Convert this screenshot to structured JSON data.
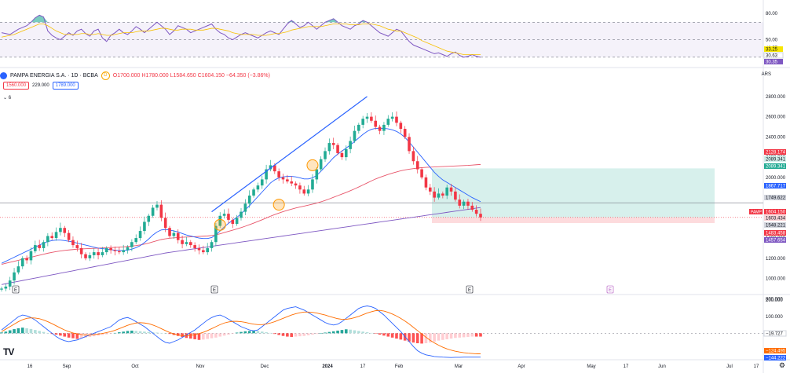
{
  "header": {
    "symbol": "PAMPA ENERGIA S.A. · 1D · BCBA",
    "badge": "D",
    "ohlc": {
      "o": "O1700.000",
      "h": "H1780.000",
      "l": "L1584.650",
      "c": "C1604.150",
      "chg": "−64.350 (−3.86%)"
    },
    "bid": "1560.000",
    "spread": "229.000",
    "ask": "1789.000",
    "indicators_toggle": "6",
    "currency": "ARS"
  },
  "chart_data": [
    {
      "type": "line",
      "panel": "rsi",
      "ylim": [
        20,
        90
      ],
      "levels": [
        70,
        50,
        30
      ],
      "y_ticks": [
        "80.00",
        "50.00",
        "40.57"
      ],
      "price_labels": [
        {
          "text": "33.25",
          "color": "#f7e600"
        },
        {
          "text": "30.63",
          "color": "#ffffff"
        },
        {
          "text": "30.35",
          "color": "#7e57c2"
        }
      ],
      "series": [
        {
          "color": "#7e57c2",
          "values": [
            58,
            57,
            56,
            59,
            62,
            64,
            66,
            70,
            75,
            78,
            76,
            60,
            55,
            52,
            50,
            54,
            58,
            55,
            60,
            62,
            57,
            54,
            60,
            62,
            52,
            48,
            55,
            58,
            62,
            58,
            56,
            60,
            65,
            62,
            58,
            62,
            66,
            70,
            66,
            62,
            56,
            60,
            66,
            64,
            62,
            58,
            60,
            62,
            64,
            66,
            68,
            62,
            58,
            56,
            52,
            50,
            53,
            56,
            58,
            56,
            54,
            52,
            55,
            58,
            60,
            58,
            56,
            62,
            68,
            72,
            68,
            64,
            66,
            70,
            66,
            62,
            66,
            70,
            72,
            74,
            70,
            66,
            64,
            62,
            66,
            68,
            72,
            70,
            66,
            62,
            58,
            56,
            54,
            58,
            62,
            60,
            54,
            48,
            44,
            42,
            40,
            38,
            36,
            34,
            35,
            33,
            31,
            34,
            36,
            32,
            30,
            31,
            33,
            31,
            30
          ]
        },
        {
          "color": "#f7c000",
          "values": [
            53,
            54,
            55,
            56,
            58,
            60,
            62,
            64,
            66,
            68,
            68,
            66,
            63,
            60,
            58,
            56,
            56,
            56,
            56,
            57,
            57,
            56,
            56,
            57,
            56,
            55,
            55,
            56,
            57,
            58,
            58,
            58,
            59,
            60,
            60,
            60,
            61,
            62,
            63,
            63,
            62,
            61,
            61,
            62,
            62,
            62,
            61,
            61,
            61,
            62,
            63,
            63,
            62,
            61,
            60,
            58,
            57,
            56,
            56,
            56,
            56,
            55,
            55,
            55,
            56,
            57,
            57,
            58,
            59,
            61,
            62,
            63,
            64,
            65,
            65,
            65,
            65,
            66,
            67,
            68,
            68,
            68,
            68,
            67,
            67,
            67,
            68,
            68,
            68,
            67,
            66,
            64,
            62,
            61,
            60,
            60,
            58,
            56,
            54,
            52,
            49,
            47,
            45,
            43,
            41,
            39,
            37,
            36,
            35,
            34,
            33,
            33,
            33,
            33,
            33
          ]
        }
      ]
    },
    {
      "type": "candlestick",
      "panel": "price",
      "ylim": [
        880,
        2900
      ],
      "y_ticks": [
        "2800.000",
        "2600.000",
        "2400.000",
        "2200.000",
        "2000.000",
        "1800.000",
        "1400.000",
        "1200.000",
        "1000.000",
        "800.000"
      ],
      "price_labels": [
        {
          "text": "2128.174",
          "bg": "#f23645",
          "fg": "#ffffff"
        },
        {
          "text": "2089.341",
          "bg": "#cfeee9",
          "fg": "#131722"
        },
        {
          "text": "2089.341",
          "bg": "#22ab94",
          "fg": "#ffffff"
        },
        {
          "text": "1867.717",
          "bg": "#2962ff",
          "fg": "#ffffff"
        },
        {
          "text": "1749.622",
          "bg": "#d1d4dc",
          "fg": "#131722"
        },
        {
          "text": "1604.150",
          "bg": "#f23645",
          "fg": "#ffffff",
          "tag": "PAMP"
        },
        {
          "text": "1603.434",
          "bg": "#f7d3d6",
          "fg": "#131722"
        },
        {
          "text": "1548.221",
          "bg": "#d1d4dc",
          "fg": "#131722"
        },
        {
          "text": "1483.458",
          "bg": "#f23645",
          "fg": "#ffffff"
        },
        {
          "text": "1457.654",
          "bg": "#7e57c2",
          "fg": "#ffffff"
        }
      ],
      "closes": [
        900,
        920,
        980,
        1060,
        1120,
        1200,
        1180,
        1270,
        1330,
        1300,
        1360,
        1420,
        1400,
        1460,
        1500,
        1450,
        1380,
        1330,
        1300,
        1240,
        1200,
        1230,
        1260,
        1230,
        1260,
        1300,
        1280,
        1270,
        1260,
        1280,
        1310,
        1360,
        1400,
        1470,
        1560,
        1620,
        1700,
        1730,
        1600,
        1500,
        1420,
        1450,
        1380,
        1340,
        1360,
        1330,
        1300,
        1280,
        1260,
        1300,
        1360,
        1520,
        1620,
        1640,
        1580,
        1540,
        1600,
        1660,
        1740,
        1820,
        1880,
        1920,
        1980,
        2080,
        2120,
        2060,
        2000,
        1980,
        1960,
        1940,
        1920,
        1880,
        1840,
        1880,
        1980,
        2080,
        2180,
        2260,
        2340,
        2320,
        2240,
        2200,
        2280,
        2360,
        2460,
        2520,
        2580,
        2600,
        2560,
        2500,
        2460,
        2520,
        2580,
        2600,
        2540,
        2480,
        2400,
        2260,
        2160,
        2080,
        2000,
        1900,
        1860,
        1800,
        1840,
        1820,
        1900,
        1860,
        1780,
        1720,
        1760,
        1720,
        1680,
        1640,
        1604
      ],
      "bb_mid": [
        1150,
        1170,
        1190,
        1210,
        1230,
        1250,
        1270,
        1290,
        1310,
        1330,
        1350,
        1365,
        1375,
        1380,
        1380,
        1375,
        1368,
        1360,
        1350,
        1340,
        1330,
        1320,
        1310,
        1300,
        1295,
        1290,
        1285,
        1280,
        1278,
        1278,
        1280,
        1290,
        1305,
        1325,
        1355,
        1390,
        1430,
        1460,
        1480,
        1485,
        1480,
        1470,
        1460,
        1445,
        1430,
        1420,
        1410,
        1400,
        1395,
        1395,
        1405,
        1430,
        1470,
        1510,
        1545,
        1575,
        1605,
        1640,
        1680,
        1720,
        1765,
        1810,
        1855,
        1900,
        1945,
        1975,
        1995,
        2005,
        2010,
        2010,
        2005,
        1995,
        1985,
        1985,
        1995,
        2020,
        2060,
        2105,
        2150,
        2195,
        2230,
        2260,
        2290,
        2320,
        2355,
        2390,
        2425,
        2455,
        2475,
        2485,
        2485,
        2485,
        2480,
        2470,
        2455,
        2430,
        2395,
        2350,
        2300,
        2250,
        2200,
        2150,
        2100,
        2050,
        2010,
        1975,
        1950,
        1925,
        1900,
        1875,
        1850,
        1825,
        1800,
        1780,
        1760
      ],
      "ma_red": [
        1140,
        1150,
        1160,
        1170,
        1180,
        1190,
        1200,
        1210,
        1220,
        1230,
        1240,
        1250,
        1258,
        1266,
        1272,
        1278,
        1282,
        1286,
        1290,
        1292,
        1294,
        1296,
        1298,
        1300,
        1302,
        1304,
        1306,
        1308,
        1310,
        1313,
        1316,
        1320,
        1325,
        1332,
        1340,
        1350,
        1362,
        1374,
        1385,
        1392,
        1398,
        1402,
        1405,
        1408,
        1410,
        1412,
        1414,
        1416,
        1418,
        1420,
        1425,
        1432,
        1442,
        1454,
        1466,
        1478,
        1490,
        1503,
        1517,
        1532,
        1548,
        1564,
        1581,
        1598,
        1616,
        1632,
        1647,
        1661,
        1674,
        1686,
        1697,
        1707,
        1716,
        1725,
        1735,
        1746,
        1758,
        1772,
        1787,
        1803,
        1819,
        1835,
        1851,
        1868,
        1886,
        1905,
        1925,
        1945,
        1965,
        1984,
        2000,
        2015,
        2029,
        2042,
        2054,
        2065,
        2074,
        2081,
        2087,
        2092,
        2096,
        2099,
        2101,
        2103,
        2105,
        2107,
        2109,
        2111,
        2113,
        2115,
        2117,
        2119,
        2122,
        2125,
        2128
      ],
      "ma_purple": [
        940,
        948,
        956,
        964,
        972,
        980,
        988,
        996,
        1004,
        1012,
        1020,
        1028,
        1036,
        1044,
        1052,
        1060,
        1068,
        1076,
        1084,
        1092,
        1100,
        1108,
        1116,
        1124,
        1132,
        1140,
        1148,
        1156,
        1164,
        1172,
        1180,
        1188,
        1196,
        1204,
        1212,
        1220,
        1228,
        1236,
        1244,
        1252,
        1258,
        1264,
        1270,
        1276,
        1282,
        1288,
        1294,
        1300,
        1306,
        1312,
        1318,
        1324,
        1330,
        1336,
        1342,
        1348,
        1354,
        1360,
        1366,
        1372,
        1378,
        1384,
        1390,
        1396,
        1402,
        1408,
        1414,
        1420,
        1426,
        1432,
        1438,
        1444,
        1450,
        1456,
        1462,
        1468,
        1474,
        1480,
        1486,
        1492,
        1498,
        1504,
        1510,
        1516,
        1522,
        1528,
        1534,
        1540,
        1546,
        1552,
        1558,
        1564,
        1570,
        1576,
        1582,
        1588,
        1594,
        1600,
        1606,
        1612,
        1618,
        1624,
        1630,
        1636,
        1642,
        1648,
        1654,
        1660,
        1666,
        1672,
        1678,
        1684,
        1690,
        1696,
        1702
      ]
    },
    {
      "type": "bar",
      "panel": "macd",
      "ylim": [
        -150,
        210
      ],
      "y_ticks": [
        "200.000",
        "100.000",
        "0.00",
        "−100.000"
      ],
      "price_labels": [
        {
          "text": "−19.727",
          "bg": "#ffffff",
          "fg": "#131722"
        },
        {
          "text": "−124.495",
          "bg": "#ff6d00",
          "fg": "#ffffff"
        },
        {
          "text": "−144.222",
          "bg": "#2962ff",
          "fg": "#ffffff"
        }
      ],
      "histogram": [
        5,
        10,
        18,
        25,
        30,
        34,
        30,
        26,
        20,
        14,
        8,
        2,
        -4,
        -8,
        -14,
        -20,
        -26,
        -30,
        -34,
        -30,
        -26,
        -22,
        -18,
        -14,
        -10,
        -6,
        -2,
        2,
        6,
        10,
        14,
        16,
        14,
        12,
        10,
        8,
        6,
        4,
        2,
        0,
        -4,
        -10,
        -16,
        -22,
        -28,
        -32,
        -36,
        -40,
        -38,
        -34,
        -30,
        -26,
        -20,
        -14,
        -8,
        -2,
        4,
        8,
        12,
        14,
        16,
        14,
        10,
        6,
        2,
        -4,
        -10,
        -16,
        -20,
        -22,
        -20,
        -18,
        -16,
        -12,
        -8,
        -4,
        0,
        4,
        8,
        12,
        16,
        20,
        24,
        22,
        18,
        14,
        10,
        6,
        2,
        -2,
        -8,
        -14,
        -20,
        -26,
        -32,
        -38,
        -44,
        -50,
        -56,
        -60,
        -62,
        -60,
        -56,
        -50,
        -44,
        -40,
        -36,
        -32,
        -28,
        -26,
        -24,
        -22,
        -20,
        -20,
        -20
      ],
      "macd_line": [
        20,
        40,
        60,
        80,
        100,
        110,
        105,
        95,
        80,
        60,
        40,
        20,
        0,
        -20,
        -35,
        -45,
        -50,
        -45,
        -40,
        -30,
        -20,
        -10,
        0,
        10,
        20,
        30,
        40,
        60,
        80,
        90,
        95,
        85,
        70,
        55,
        40,
        20,
        0,
        -20,
        -40,
        -55,
        -60,
        -50,
        -40,
        -25,
        -10,
        5,
        20,
        40,
        60,
        80,
        95,
        105,
        110,
        100,
        85,
        70,
        55,
        40,
        30,
        20,
        15,
        20,
        40,
        60,
        80,
        100,
        120,
        140,
        150,
        155,
        160,
        150,
        140,
        125,
        110,
        95,
        80,
        65,
        55,
        50,
        55,
        70,
        90,
        110,
        130,
        150,
        160,
        165,
        160,
        150,
        130,
        110,
        85,
        60,
        35,
        10,
        -20,
        -50,
        -80,
        -105,
        -120,
        -130,
        -135,
        -140,
        -142,
        -144,
        -145,
        -146,
        -145,
        -145,
        -144,
        -144,
        -144,
        -144,
        -144
      ],
      "signal_line": [
        10,
        25,
        40,
        55,
        70,
        82,
        90,
        93,
        92,
        88,
        80,
        70,
        58,
        45,
        32,
        20,
        10,
        2,
        -4,
        -8,
        -10,
        -10,
        -8,
        -5,
        -1,
        4,
        10,
        18,
        28,
        38,
        48,
        56,
        62,
        64,
        62,
        58,
        50,
        40,
        28,
        16,
        5,
        -4,
        -10,
        -14,
        -14,
        -12,
        -8,
        -2,
        6,
        16,
        28,
        40,
        52,
        62,
        68,
        72,
        72,
        70,
        66,
        60,
        55,
        52,
        52,
        56,
        62,
        70,
        80,
        90,
        100,
        110,
        118,
        124,
        128,
        128,
        126,
        122,
        116,
        110,
        102,
        95,
        88,
        84,
        84,
        88,
        94,
        102,
        112,
        122,
        130,
        136,
        138,
        134,
        126,
        116,
        104,
        90,
        74,
        56,
        36,
        16,
        -4,
        -24,
        -42,
        -58,
        -72,
        -84,
        -94,
        -102,
        -108,
        -113,
        -117,
        -120,
        -122,
        -124,
        -124
      ]
    }
  ],
  "x_axis": {
    "labels": [
      "16",
      "Sep",
      "Oct",
      "Nov",
      "Dec",
      "2024",
      "17",
      "Feb",
      "Mar",
      "Apr",
      "May",
      "17",
      "Jun",
      "Jul",
      "17"
    ],
    "bold": [
      "2024"
    ]
  },
  "markers": {
    "earnings": "E",
    "earnings_future": "E"
  },
  "branding": {
    "logo": "TV"
  }
}
